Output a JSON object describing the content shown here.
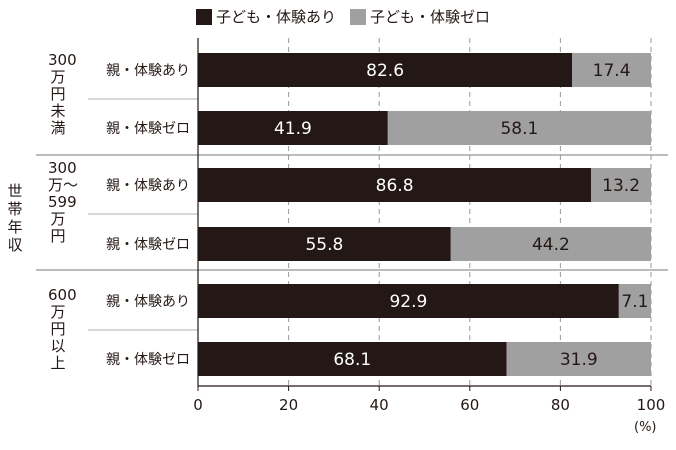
{
  "chart_data": {
    "type": "bar",
    "stacked": true,
    "orientation": "horizontal",
    "legend": [
      {
        "name": "子ども・体験あり",
        "color": "#231815"
      },
      {
        "name": "子ども・体験ゼロ",
        "color": "#a0a0a0"
      }
    ],
    "y_axis_title": "世帯年収",
    "x_unit": "(%)",
    "xlim": [
      0,
      100
    ],
    "xticks": [
      0,
      20,
      40,
      60,
      80,
      100
    ],
    "groups": [
      {
        "label": "300万円未満",
        "rows": [
          {
            "label": "親・体験あり",
            "values": [
              82.6,
              17.4
            ],
            "value_labels": [
              "82.6",
              "17.4"
            ]
          },
          {
            "label": "親・体験ゼロ",
            "values": [
              41.9,
              58.1
            ],
            "value_labels": [
              "41.9",
              "58.1"
            ]
          }
        ]
      },
      {
        "label": "300万〜599万円",
        "rows": [
          {
            "label": "親・体験あり",
            "values": [
              86.8,
              13.2
            ],
            "value_labels": [
              "86.8",
              "13.2"
            ]
          },
          {
            "label": "親・体験ゼロ",
            "values": [
              55.8,
              44.2
            ],
            "value_labels": [
              "55.8",
              "44.2"
            ]
          }
        ]
      },
      {
        "label": "600万円以上",
        "rows": [
          {
            "label": "親・体験あり",
            "values": [
              92.9,
              7.1
            ],
            "value_labels": [
              "92.9",
              "7.1"
            ]
          },
          {
            "label": "親・体験ゼロ",
            "values": [
              68.1,
              31.9
            ],
            "value_labels": [
              "68.1",
              "31.9"
            ]
          }
        ]
      }
    ]
  }
}
